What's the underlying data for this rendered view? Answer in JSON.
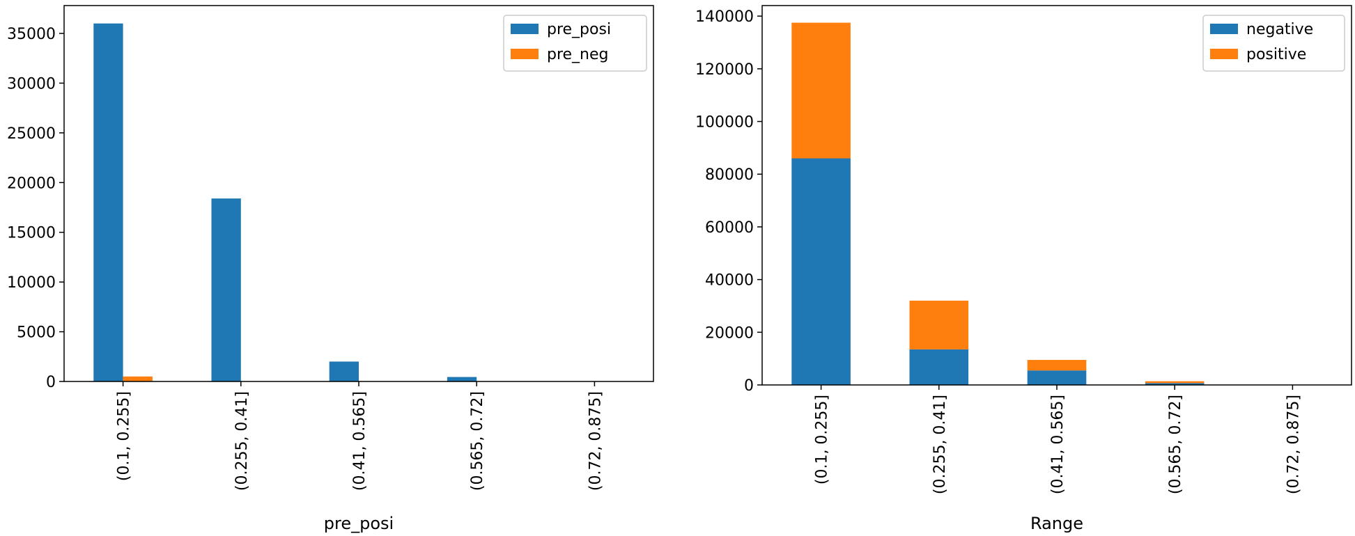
{
  "chart_data": [
    {
      "type": "bar",
      "categories": [
        "(0.1, 0.255]",
        "(0.255, 0.41]",
        "(0.41, 0.565]",
        "(0.565, 0.72]",
        "(0.72, 0.875]"
      ],
      "series": [
        {
          "name": "pre_posi",
          "color": "#1f77b4",
          "values": [
            36000,
            18400,
            2000,
            450,
            0
          ]
        },
        {
          "name": "pre_neg",
          "color": "#ff7f0e",
          "values": [
            500,
            0,
            0,
            0,
            0
          ]
        }
      ],
      "stacked": false,
      "title": "",
      "xlabel": "pre_posi",
      "ylabel": "",
      "ylim": [
        0,
        37800
      ],
      "yticks": [
        0,
        5000,
        10000,
        15000,
        20000,
        25000,
        30000,
        35000
      ],
      "legend": "top-right",
      "grid": false
    },
    {
      "type": "bar",
      "categories": [
        "(0.1, 0.255]",
        "(0.255, 0.41]",
        "(0.41, 0.565]",
        "(0.565, 0.72]",
        "(0.72, 0.875]"
      ],
      "series": [
        {
          "name": "negative",
          "color": "#1f77b4",
          "values": [
            86000,
            13500,
            5500,
            700,
            0
          ]
        },
        {
          "name": "positive",
          "color": "#ff7f0e",
          "values": [
            51500,
            18500,
            4000,
            700,
            0
          ]
        }
      ],
      "stacked": true,
      "title": "",
      "xlabel": "Range",
      "ylabel": "",
      "ylim": [
        0,
        144000
      ],
      "yticks": [
        0,
        20000,
        40000,
        60000,
        80000,
        100000,
        120000,
        140000
      ],
      "legend": "top-right",
      "grid": false
    }
  ]
}
